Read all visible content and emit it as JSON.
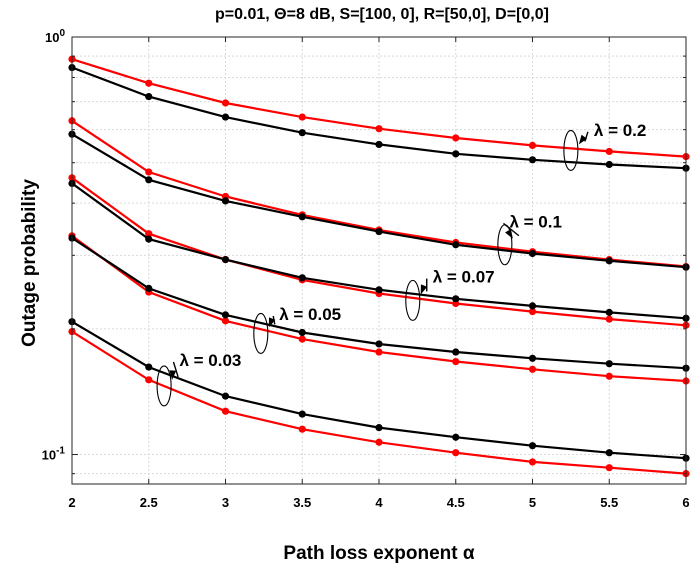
{
  "chart_data": {
    "type": "line",
    "title": "p=0.01, Θ=8 dB, S=[100, 0], R=[50,0], D=[0,0]",
    "xlabel": "Path loss exponent α",
    "ylabel": "Outage probability",
    "x": [
      2,
      2.5,
      3,
      3.5,
      4,
      4.5,
      5,
      5.5,
      6
    ],
    "xticks": [
      "2",
      "2.5",
      "3",
      "3.5",
      "4",
      "4.5",
      "5",
      "5.5",
      "6"
    ],
    "yscale": "log",
    "ylim": [
      0.085,
      1.0
    ],
    "xlim": [
      2,
      6
    ],
    "yticks": [
      {
        "value": 0.1,
        "base": "10",
        "exp": "-1"
      },
      {
        "value": 1.0,
        "base": "10",
        "exp": "0"
      }
    ],
    "grid": true,
    "colors": {
      "red": "#ff0000",
      "black": "#000000"
    },
    "series": [
      {
        "color": "red",
        "values": [
          0.885,
          0.775,
          0.695,
          0.643,
          0.603,
          0.573,
          0.55,
          0.532,
          0.517
        ]
      },
      {
        "color": "black",
        "values": [
          0.845,
          0.72,
          0.643,
          0.59,
          0.553,
          0.525,
          0.508,
          0.495,
          0.485
        ]
      },
      {
        "color": "red",
        "values": [
          0.63,
          0.475,
          0.415,
          0.375,
          0.345,
          0.322,
          0.306,
          0.293,
          0.282
        ]
      },
      {
        "color": "black",
        "values": [
          0.585,
          0.455,
          0.405,
          0.371,
          0.342,
          0.318,
          0.303,
          0.291,
          0.281
        ]
      },
      {
        "color": "red",
        "values": [
          0.46,
          0.338,
          0.293,
          0.262,
          0.243,
          0.23,
          0.22,
          0.211,
          0.204
        ]
      },
      {
        "color": "black",
        "values": [
          0.446,
          0.328,
          0.293,
          0.265,
          0.248,
          0.236,
          0.227,
          0.219,
          0.212
        ]
      },
      {
        "color": "red",
        "values": [
          0.334,
          0.245,
          0.209,
          0.189,
          0.176,
          0.167,
          0.16,
          0.154,
          0.15
        ]
      },
      {
        "color": "black",
        "values": [
          0.33,
          0.25,
          0.216,
          0.196,
          0.184,
          0.176,
          0.17,
          0.165,
          0.161
        ]
      },
      {
        "color": "black",
        "values": [
          0.208,
          0.162,
          0.138,
          0.125,
          0.116,
          0.11,
          0.105,
          0.101,
          0.098
        ]
      },
      {
        "color": "red",
        "values": [
          0.197,
          0.151,
          0.127,
          0.115,
          0.107,
          0.101,
          0.096,
          0.093,
          0.09
        ]
      }
    ],
    "annotations": [
      {
        "text": "λ = 0.2",
        "x": 5.4,
        "y": 0.58
      },
      {
        "text": "λ = 0.1",
        "x": 4.85,
        "y": 0.35
      },
      {
        "text": "λ = 0.07",
        "x": 4.35,
        "y": 0.258
      },
      {
        "text": "λ = 0.05",
        "x": 3.35,
        "y": 0.21
      },
      {
        "text": "λ = 0.03",
        "x": 2.7,
        "y": 0.163
      }
    ],
    "ellipses": [
      {
        "x": 5.25,
        "y": 0.535
      },
      {
        "x": 4.82,
        "y": 0.318
      },
      {
        "x": 4.22,
        "y": 0.234
      },
      {
        "x": 3.23,
        "y": 0.195
      },
      {
        "x": 2.6,
        "y": 0.146
      }
    ]
  }
}
